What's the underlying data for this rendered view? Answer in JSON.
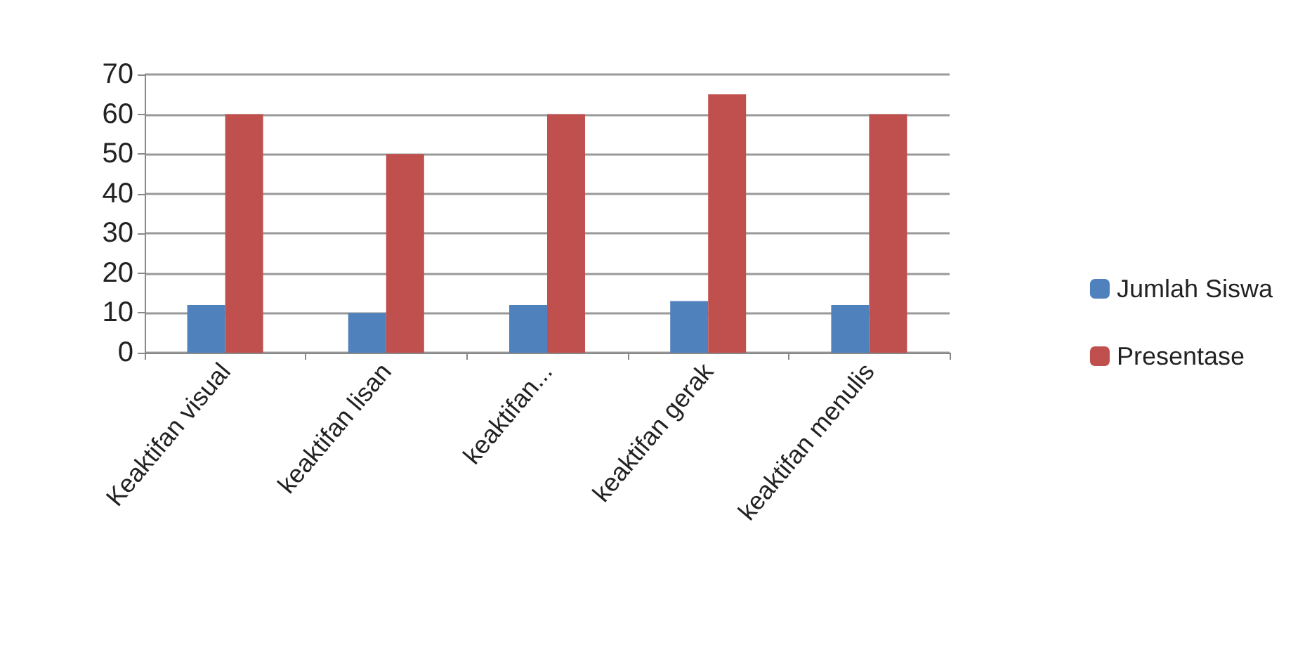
{
  "chart_data": {
    "type": "bar",
    "categories": [
      "Keaktifan visual",
      "keaktifan lisan",
      "keaktifan...",
      "keaktifan gerak",
      "keaktifan menulis"
    ],
    "series": [
      {
        "name": "Jumlah Siswa",
        "color": "#4f81bd",
        "values": [
          12,
          10,
          12,
          13,
          12
        ]
      },
      {
        "name": "Presentase",
        "color": "#c0504d",
        "values": [
          60,
          50,
          60,
          65,
          60
        ]
      }
    ],
    "ylim": [
      0,
      70
    ],
    "yticks": [
      0,
      10,
      20,
      30,
      40,
      50,
      60,
      70
    ],
    "grid": "y",
    "legend": "right"
  }
}
